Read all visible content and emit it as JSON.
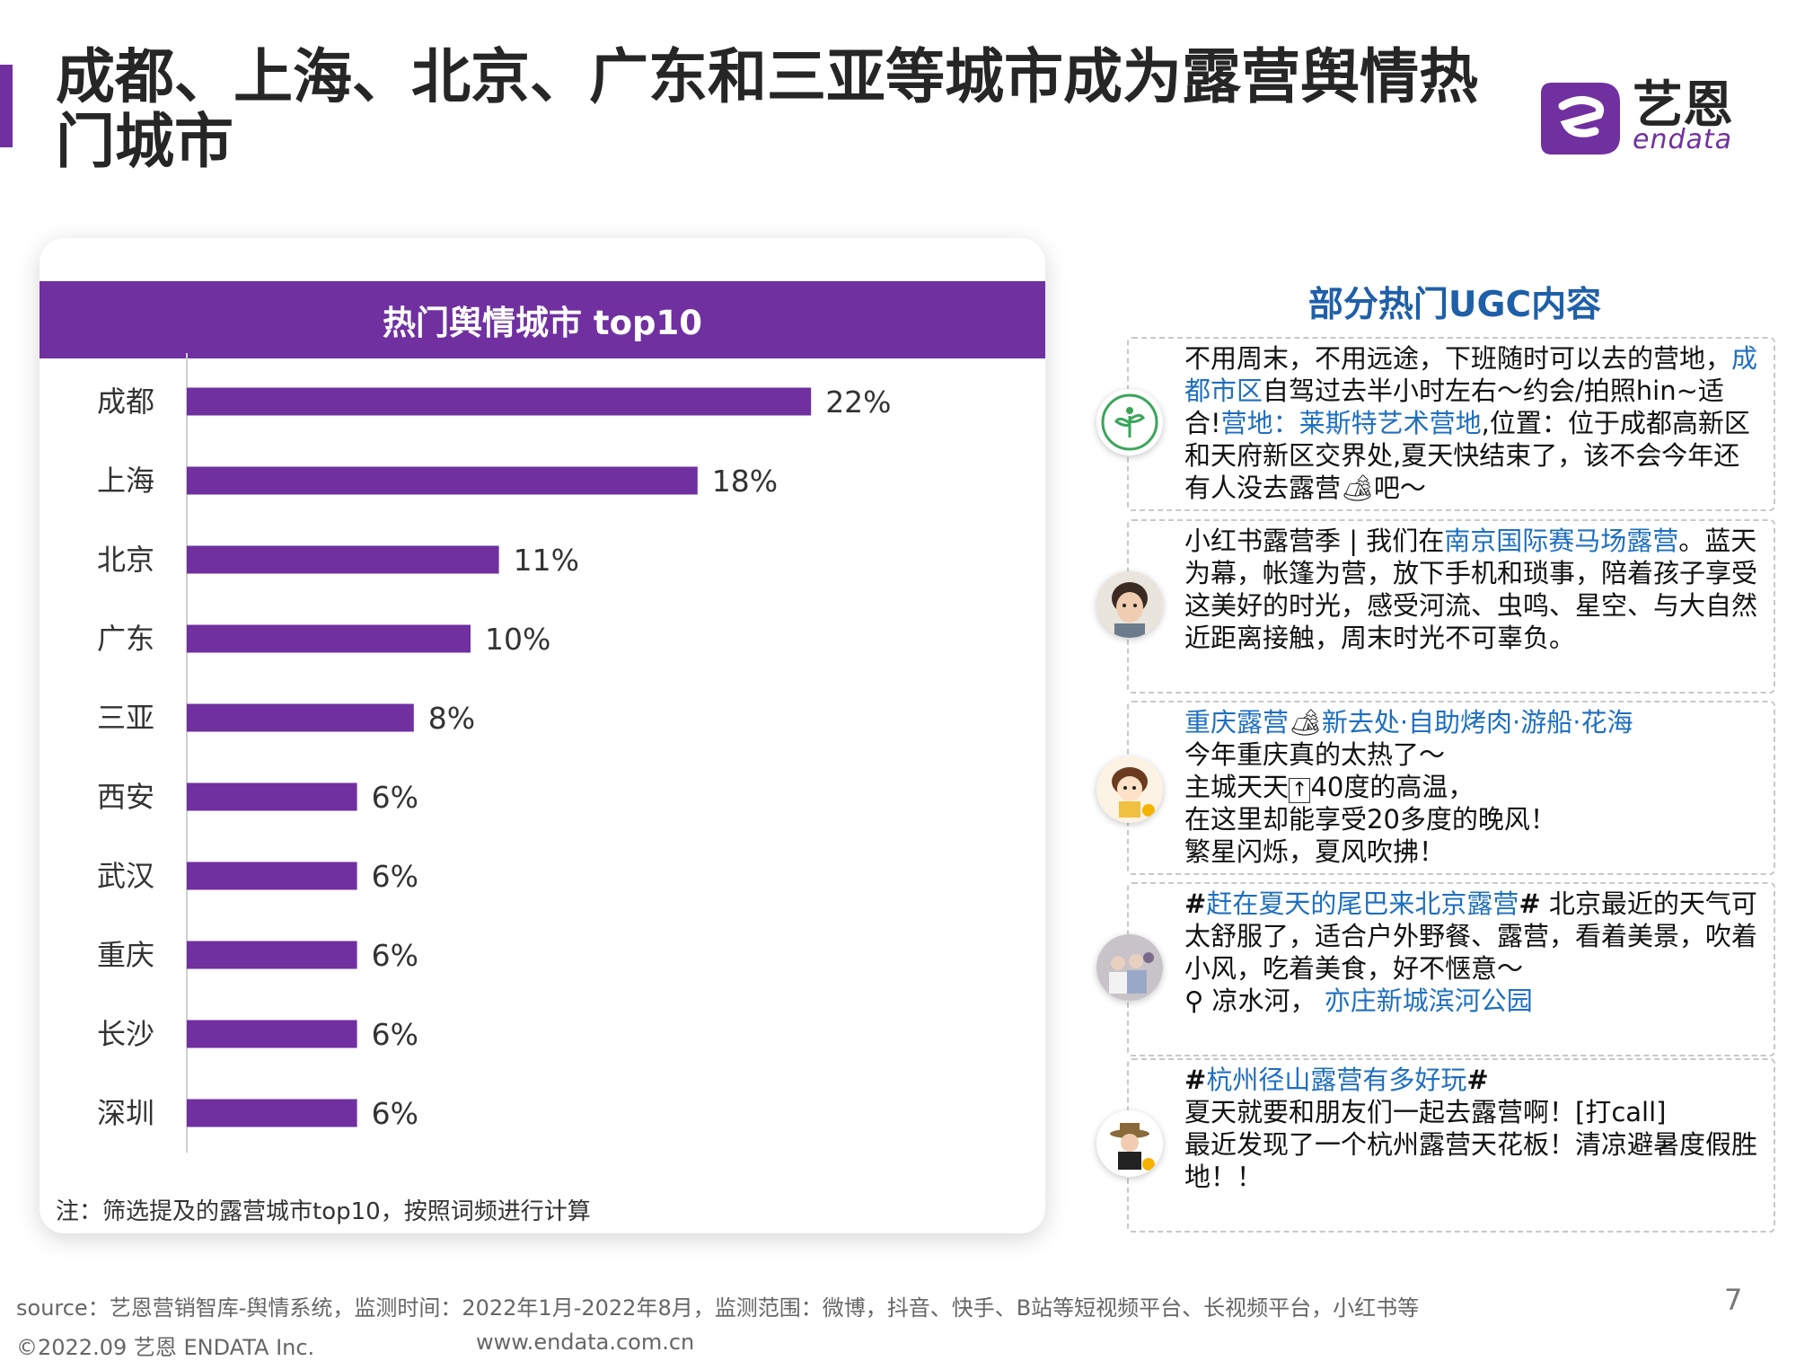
{
  "page": {
    "title": "成都、上海、北京、广东和三亚等城市成为露营舆情热门城市",
    "page_number": "7"
  },
  "logo": {
    "cn": "艺恩",
    "en": "endata"
  },
  "chart_data": {
    "type": "bar",
    "orientation": "horizontal",
    "title": "热门舆情城市 top10",
    "categories": [
      "成都",
      "上海",
      "北京",
      "广东",
      "三亚",
      "西安",
      "武汉",
      "重庆",
      "长沙",
      "深圳"
    ],
    "values": [
      22,
      18,
      11,
      10,
      8,
      6,
      6,
      6,
      6,
      6
    ],
    "data_labels": [
      "22%",
      "18%",
      "11%",
      "10%",
      "8%",
      "6%",
      "6%",
      "6%",
      "6%",
      "6%"
    ],
    "unit": "%",
    "xlim": [
      0,
      25
    ],
    "bar_color": "#7030A0",
    "grid": false,
    "note": "注：筛选提及的露营城市top10，按照词频进行计算"
  },
  "ugc": {
    "title": "部分热门UGC内容",
    "posts": [
      {
        "avatar": "sprout-logo-avatar",
        "segments": [
          {
            "text": "不用周末，不用远途，下班随时可以去的营地，"
          },
          {
            "text": "成都市区",
            "hl": true
          },
          {
            "text": "自驾过去半小时左右～约会/拍照hin~适合!"
          },
          {
            "text": "营地：莱斯特艺术营地",
            "hl": true
          },
          {
            "text": ",位置：位于成都高新区和天府新区交界处,夏天快结束了，该不会今年还有人没去露营"
          },
          {
            "text": "🏕",
            "emoji": true
          },
          {
            "text": "吧～"
          }
        ]
      },
      {
        "avatar": "child-photo-avatar",
        "segments": [
          {
            "text": "小红书露营季 | 我们在"
          },
          {
            "text": "南京国际赛马场露营",
            "hl": true
          },
          {
            "text": "。蓝天为幕，帐篷为营，放下手机和琐事，陪着孩子享受这美好的时光，感受河流、虫鸣、星空、与大自然近距离接触，周末时光不可辜负。"
          }
        ]
      },
      {
        "avatar": "cartoon-girl-avatar",
        "segments": [
          {
            "text": "重庆露营",
            "hl": true
          },
          {
            "text": "🏕",
            "emoji": true
          },
          {
            "text": "新去处·自助烤肉·游船·花海",
            "hl": true
          },
          {
            "text": "\n今年重庆真的太热了～\n主城天天"
          },
          {
            "text": "↑",
            "box": true
          },
          {
            "text": "40度的高温，\n在这里却能享受20多度的晚风！\n繁星闪烁，夏风吹拂！"
          }
        ]
      },
      {
        "avatar": "group-photo-avatar",
        "segments": [
          {
            "text": "#",
            "bold": true
          },
          {
            "text": "赶在夏天的尾巴来北京露营",
            "hl": true
          },
          {
            "text": "#",
            "bold": true
          },
          {
            "text": " 北京最近的天气可太舒服了，适合户外野餐、露营，看着美景，吹着小风，吃着美食，好不惬意～\n"
          },
          {
            "text": "⚲",
            "emoji": true
          },
          {
            "text": " 凉水河， "
          },
          {
            "text": "亦庄新城滨河公园",
            "hl": true
          }
        ]
      },
      {
        "avatar": "hat-person-avatar",
        "segments": [
          {
            "text": "#",
            "bold": true
          },
          {
            "text": "杭州径山露营有多好玩",
            "hl": true
          },
          {
            "text": "#",
            "bold": true
          },
          {
            "text": "\n夏天就要和朋友们一起去露营啊！[打call]\n最近发现了一个杭州露营天花板！清凉避暑度假胜地！！"
          }
        ]
      }
    ]
  },
  "footer": {
    "source": "source：艺恩营销智库-舆情系统，监测时间：2022年1月-2022年8月，监测范围：微博，抖音、快手、B站等短视频平台、长视频平台，小红书等",
    "copyright": "©2022.09 艺恩 ENDATA Inc.",
    "website": "www.endata.com.cn"
  }
}
